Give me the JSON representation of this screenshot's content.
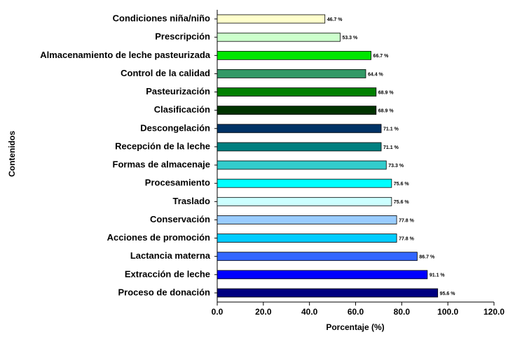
{
  "chart_data": {
    "type": "barh",
    "ylabel": "Contenidos",
    "xlabel": "Porcentaje (%)",
    "categories": [
      "Condiciones niña/niño",
      "Prescripción",
      "Almacenamiento de leche pasteurizada",
      "Control de la calidad",
      "Pasteurización",
      "Clasificación",
      "Descongelación",
      "Recepción de la leche",
      "Formas de almacenaje",
      "Procesamiento",
      "Traslado",
      "Conservación",
      "Acciones de promoción",
      "Lactancia materna",
      "Extracción de leche",
      "Proceso de donación"
    ],
    "values": [
      46.7,
      53.3,
      66.7,
      64.4,
      68.9,
      68.9,
      71.1,
      71.1,
      73.3,
      75.6,
      75.6,
      77.8,
      77.8,
      86.7,
      91.1,
      95.6
    ],
    "value_labels": [
      "46.7 %",
      "53.3 %",
      "66.7 %",
      "64.4 %",
      "68.9 %",
      "68.9 %",
      "71.1 %",
      "71.1 %",
      "73.3 %",
      "75.6 %",
      "75.6 %",
      "77.8 %",
      "77.8 %",
      "86.7 %",
      "91.1 %",
      "95.6 %"
    ],
    "colors": [
      "#ffffcc",
      "#ccffcc",
      "#00e600",
      "#339966",
      "#008000",
      "#003300",
      "#003366",
      "#008080",
      "#33cccc",
      "#00ffff",
      "#ccffff",
      "#99ccff",
      "#00ccff",
      "#3366ff",
      "#0000ff",
      "#000080"
    ],
    "xlim": [
      0,
      120
    ],
    "xticks": [
      {
        "value": 0,
        "label": "0.0"
      },
      {
        "value": 20,
        "label": "20.0"
      },
      {
        "value": 40,
        "label": "40.0"
      },
      {
        "value": 60,
        "label": "60.0"
      },
      {
        "value": 80,
        "label": "80.0"
      },
      {
        "value": 100,
        "label": "100.0"
      },
      {
        "value": 120,
        "label": "120.0"
      }
    ]
  }
}
